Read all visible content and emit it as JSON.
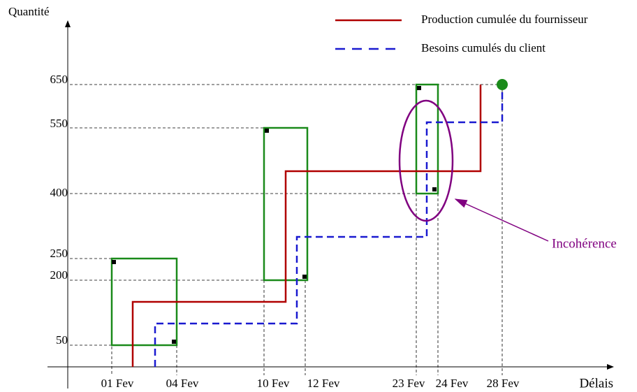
{
  "axes": {
    "y_label": "Quantité",
    "x_label": "Délais"
  },
  "legend": [
    {
      "label": "Production cumulée du fournisseur"
    },
    {
      "label": "Besoins cumulés du client"
    }
  ],
  "y_ticks": [
    "650",
    "550",
    "400",
    "250",
    "200",
    "50"
  ],
  "x_ticks": [
    "01 Fev",
    "04 Fev",
    "10 Fev",
    "12 Fev",
    "23 Fev",
    "24 Fev",
    "28 Fev"
  ],
  "annotation": "Incohérence"
}
